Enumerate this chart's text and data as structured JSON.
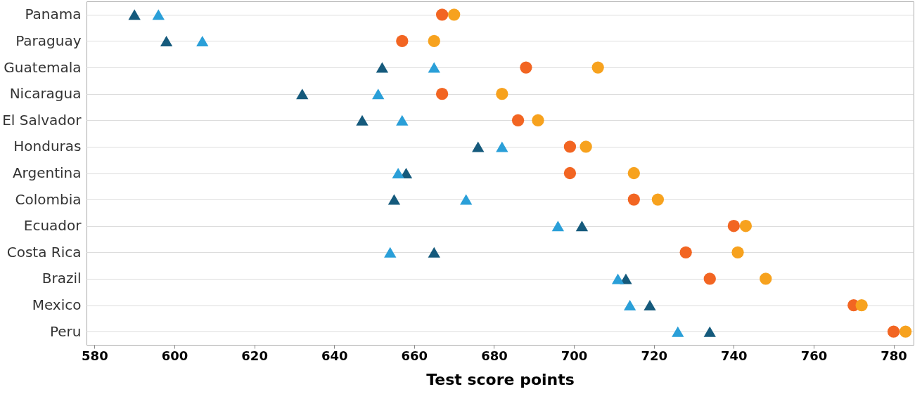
{
  "chart_data": {
    "type": "scatter",
    "xlabel": "Test score points",
    "categories": [
      "Panama",
      "Paraguay",
      "Guatemala",
      "Nicaragua",
      "El Salvador",
      "Honduras",
      "Argentina",
      "Colombia",
      "Ecuador",
      "Costa Rica",
      "Brazil",
      "Mexico",
      "Peru"
    ],
    "orientation": "horizontal",
    "xlim": [
      578,
      785
    ],
    "xticks": [
      580,
      600,
      620,
      640,
      660,
      680,
      700,
      720,
      740,
      760,
      780
    ],
    "grid": "y",
    "series": [
      {
        "color": "#155a7c",
        "marker": "triangle",
        "values": [
          590,
          598,
          652,
          632,
          647,
          676,
          658,
          655,
          702,
          665,
          713,
          719,
          734
        ]
      },
      {
        "color": "#2a9fd8",
        "marker": "triangle",
        "values": [
          596,
          607,
          665,
          651,
          657,
          682,
          656,
          673,
          696,
          654,
          711,
          714,
          726
        ]
      },
      {
        "color": "#f26522",
        "marker": "circle",
        "values": [
          667,
          657,
          688,
          667,
          686,
          699,
          699,
          715,
          740,
          728,
          734,
          770,
          780
        ]
      },
      {
        "color": "#f7a21e",
        "marker": "circle",
        "values": [
          670,
          665,
          706,
          682,
          691,
          703,
          715,
          721,
          743,
          741,
          748,
          772,
          783
        ]
      }
    ]
  }
}
